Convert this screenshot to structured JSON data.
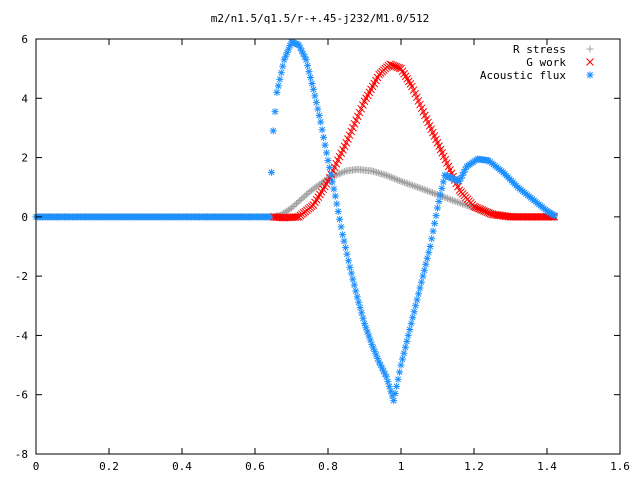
{
  "chart_data": {
    "type": "scatter",
    "title": "m2/n1.5/q1.5/r-+.45-j232/M1.0/512",
    "xlabel": "",
    "ylabel": "",
    "xlim": [
      0,
      1.6
    ],
    "ylim": [
      -8,
      6
    ],
    "x_ticks": [
      "0",
      "0.2",
      "0.4",
      "0.6",
      "0.8",
      "1",
      "1.2",
      "1.4",
      "1.6"
    ],
    "y_ticks": [
      "6",
      "4",
      "2",
      "0",
      "-2",
      "-4",
      "-6",
      "-8"
    ],
    "grid": false,
    "legend_position": "top-right",
    "series": [
      {
        "name": "R stress",
        "marker": "+",
        "color": "#a0a0a0",
        "points": [
          [
            0,
            0
          ],
          [
            0.1,
            0
          ],
          [
            0.2,
            0
          ],
          [
            0.3,
            0
          ],
          [
            0.4,
            0
          ],
          [
            0.5,
            0
          ],
          [
            0.6,
            0
          ],
          [
            0.65,
            0
          ],
          [
            0.67,
            0.05
          ],
          [
            0.7,
            0.3
          ],
          [
            0.75,
            0.85
          ],
          [
            0.8,
            1.3
          ],
          [
            0.85,
            1.55
          ],
          [
            0.88,
            1.6
          ],
          [
            0.92,
            1.55
          ],
          [
            0.96,
            1.4
          ],
          [
            1.0,
            1.2
          ],
          [
            1.05,
            0.98
          ],
          [
            1.1,
            0.75
          ],
          [
            1.15,
            0.52
          ],
          [
            1.2,
            0.3
          ],
          [
            1.25,
            0.12
          ],
          [
            1.3,
            0.02
          ],
          [
            1.35,
            0
          ],
          [
            1.4,
            0
          ],
          [
            1.42,
            0
          ]
        ]
      },
      {
        "name": "G work",
        "marker": "x",
        "color": "#ff0000",
        "points": [
          [
            0.65,
            0
          ],
          [
            0.68,
            -0.03
          ],
          [
            0.72,
            0
          ],
          [
            0.76,
            0.4
          ],
          [
            0.8,
            1.2
          ],
          [
            0.85,
            2.5
          ],
          [
            0.9,
            3.9
          ],
          [
            0.94,
            4.8
          ],
          [
            0.97,
            5.15
          ],
          [
            1.0,
            5.0
          ],
          [
            1.03,
            4.4
          ],
          [
            1.07,
            3.3
          ],
          [
            1.1,
            2.5
          ],
          [
            1.13,
            1.7
          ],
          [
            1.16,
            0.9
          ],
          [
            1.2,
            0.35
          ],
          [
            1.25,
            0.08
          ],
          [
            1.3,
            0
          ],
          [
            1.35,
            0
          ],
          [
            1.4,
            0
          ],
          [
            1.42,
            0
          ]
        ]
      },
      {
        "name": "Acoustic flux",
        "marker": "*",
        "color": "#1e90ff",
        "points": [
          [
            0,
            0
          ],
          [
            0.1,
            0
          ],
          [
            0.2,
            0
          ],
          [
            0.3,
            0
          ],
          [
            0.4,
            0
          ],
          [
            0.5,
            0
          ],
          [
            0.6,
            0
          ],
          [
            0.64,
            0
          ],
          [
            0.645,
            1.5
          ],
          [
            0.65,
            2.9
          ],
          [
            0.66,
            4.2
          ],
          [
            0.68,
            5.3
          ],
          [
            0.7,
            5.9
          ],
          [
            0.72,
            5.8
          ],
          [
            0.74,
            5.3
          ],
          [
            0.76,
            4.3
          ],
          [
            0.78,
            3.2
          ],
          [
            0.8,
            1.9
          ],
          [
            0.82,
            0.7
          ],
          [
            0.84,
            -0.6
          ],
          [
            0.86,
            -1.7
          ],
          [
            0.88,
            -2.7
          ],
          [
            0.9,
            -3.6
          ],
          [
            0.92,
            -4.3
          ],
          [
            0.94,
            -4.9
          ],
          [
            0.96,
            -5.4
          ],
          [
            0.98,
            -6.2
          ],
          [
            1.0,
            -5.0
          ],
          [
            1.02,
            -4.0
          ],
          [
            1.04,
            -3.0
          ],
          [
            1.06,
            -2.0
          ],
          [
            1.08,
            -1.0
          ],
          [
            1.1,
            0.3
          ],
          [
            1.12,
            1.4
          ],
          [
            1.14,
            1.3
          ],
          [
            1.16,
            1.2
          ],
          [
            1.18,
            1.7
          ],
          [
            1.21,
            1.95
          ],
          [
            1.24,
            1.9
          ],
          [
            1.28,
            1.5
          ],
          [
            1.32,
            1.0
          ],
          [
            1.36,
            0.6
          ],
          [
            1.4,
            0.2
          ],
          [
            1.42,
            0.05
          ]
        ]
      }
    ]
  }
}
